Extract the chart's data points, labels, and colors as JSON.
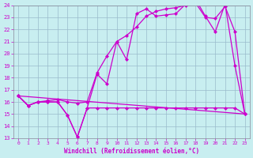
{
  "xlabel": "Windchill (Refroidissement éolien,°C)",
  "background_color": "#c8eef0",
  "line_color": "#cc00cc",
  "xlim_min": -0.5,
  "xlim_max": 23.5,
  "ylim_min": 13,
  "ylim_max": 24,
  "yticks": [
    13,
    14,
    15,
    16,
    17,
    18,
    19,
    20,
    21,
    22,
    23,
    24
  ],
  "xticks": [
    0,
    1,
    2,
    3,
    4,
    5,
    6,
    7,
    8,
    9,
    10,
    11,
    12,
    13,
    14,
    15,
    16,
    17,
    18,
    19,
    20,
    21,
    22,
    23
  ],
  "series1_x": [
    0,
    1,
    2,
    3,
    4,
    5,
    6,
    7,
    8,
    9,
    10,
    11,
    12,
    13,
    14,
    15,
    16,
    17,
    18,
    19,
    20,
    21,
    22,
    23
  ],
  "series1_y": [
    16.5,
    15.7,
    16.0,
    16.0,
    16.0,
    14.9,
    13.1,
    15.5,
    18.3,
    17.5,
    21.0,
    19.5,
    23.3,
    23.7,
    23.1,
    23.2,
    23.3,
    24.1,
    24.5,
    23.1,
    21.8,
    24.1,
    19.0,
    15.0
  ],
  "series2_x": [
    0,
    1,
    2,
    3,
    4,
    5,
    6,
    7,
    8,
    9,
    10,
    11,
    12,
    13,
    14,
    15,
    16,
    17,
    18,
    19,
    20,
    21,
    22,
    23
  ],
  "series2_y": [
    16.5,
    15.7,
    16.0,
    16.1,
    16.2,
    16.0,
    15.9,
    16.0,
    18.4,
    19.8,
    21.0,
    21.5,
    22.2,
    23.1,
    23.5,
    23.7,
    23.8,
    24.0,
    24.2,
    23.0,
    22.9,
    23.9,
    21.8,
    15.0
  ],
  "series3_x": [
    0,
    23
  ],
  "series3_y": [
    16.5,
    15.0
  ],
  "flat_x": [
    0,
    1,
    2,
    3,
    4,
    5,
    6,
    7,
    8,
    9,
    10,
    11,
    12,
    13,
    14,
    15,
    16,
    17,
    18,
    19,
    20,
    21,
    22,
    23
  ],
  "flat_y": [
    16.5,
    15.7,
    16.0,
    16.0,
    16.0,
    14.9,
    13.1,
    15.5,
    15.5,
    15.5,
    15.5,
    15.5,
    15.5,
    15.5,
    15.5,
    15.5,
    15.5,
    15.5,
    15.5,
    15.5,
    15.5,
    15.5,
    15.5,
    15.0
  ]
}
